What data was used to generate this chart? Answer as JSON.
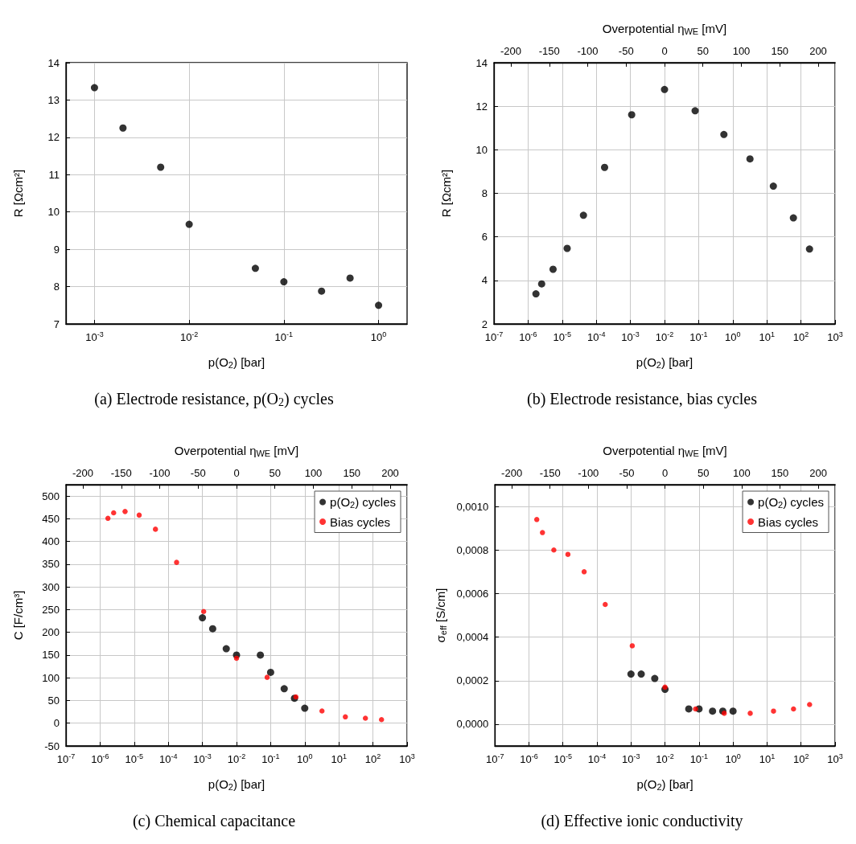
{
  "chart_data": [
    {
      "type": "scatter",
      "title": "(a) Electrode resistance, p(O$_{2}$) cycles",
      "xlabel": "p(O$_{2}$) [bar]",
      "ylabel": "R [Ωcm²]",
      "log": "x",
      "grid": true,
      "marker": "circle",
      "legend": false,
      "xlim": [
        0.0005,
        2
      ],
      "xticks": [
        {
          "value": 0.001,
          "label": "10$^{-3}$"
        },
        {
          "value": 0.01,
          "label": "10$^{-2}$"
        },
        {
          "value": 0.1,
          "label": "10$^{-1}$"
        },
        {
          "value": 1,
          "label": "10$^{0}$"
        }
      ],
      "ylim": [
        7,
        14
      ],
      "yticks": [
        7,
        8,
        9,
        10,
        11,
        12,
        13,
        14
      ],
      "series": [
        {
          "color": "#000000",
          "x": [
            0.001,
            0.002,
            0.005,
            0.01,
            0.05,
            0.1,
            0.25,
            0.5,
            1
          ],
          "values": [
            13.33,
            12.25,
            11.2,
            9.67,
            8.49,
            8.13,
            7.88,
            8.23,
            7.5
          ]
        }
      ]
    },
    {
      "type": "scatter",
      "title": "(b) Electrode resistance, bias cycles",
      "xlabel": "p(O$_{2}$) [bar]",
      "ylabel": "R [Ωcm²]",
      "x2label": "Overpotential η$_{WE}$ [mV]",
      "log": "x",
      "grid": true,
      "marker": "circle",
      "legend": false,
      "xlim": [
        1e-07,
        1000
      ],
      "xticks": [
        {
          "value": 1e-07,
          "label": "10$^{-7}$"
        },
        {
          "value": 1e-06,
          "label": "10$^{-6}$"
        },
        {
          "value": 1e-05,
          "label": "10$^{-5}$"
        },
        {
          "value": 0.0001,
          "label": "10$^{-4}$"
        },
        {
          "value": 0.001,
          "label": "10$^{-3}$"
        },
        {
          "value": 0.01,
          "label": "10$^{-2}$"
        },
        {
          "value": 0.1,
          "label": "10$^{-1}$"
        },
        {
          "value": 1,
          "label": "10$^{0}$"
        },
        {
          "value": 10,
          "label": "10$^{1}$"
        },
        {
          "value": 100,
          "label": "10$^{2}$"
        },
        {
          "value": 1000,
          "label": "10$^{3}$"
        }
      ],
      "x2lim": [
        -222,
        222
      ],
      "x2ticks": [
        -200,
        -150,
        -100,
        -50,
        0,
        50,
        100,
        150,
        200
      ],
      "ylim": [
        2,
        14
      ],
      "yticks": [
        2,
        4,
        6,
        8,
        10,
        12,
        14
      ],
      "series": [
        {
          "color": "#000000",
          "x": [
            1.7e-06,
            2.5e-06,
            5.4e-06,
            1.4e-05,
            4.2e-05,
            0.000175,
            0.00109,
            0.01,
            0.079,
            0.55,
            3.2,
            15.5,
            60,
            178
          ],
          "values": [
            3.38,
            3.84,
            4.51,
            5.47,
            6.99,
            9.19,
            11.61,
            12.77,
            11.79,
            10.7,
            9.58,
            8.33,
            6.87,
            5.44
          ]
        }
      ]
    },
    {
      "type": "scatter",
      "title": "(c) Chemical capacitance",
      "xlabel": "p(O$_{2}$) [bar]",
      "ylabel": "C [F/cm³]",
      "x2label": "Overpotential η$_{WE}$ [mV]",
      "log": "x",
      "grid": true,
      "marker": "circle",
      "legend": "top right",
      "xlim": [
        1e-07,
        1000
      ],
      "xticks": [
        {
          "value": 1e-07,
          "label": "10$^{-7}$"
        },
        {
          "value": 1e-06,
          "label": "10$^{-6}$"
        },
        {
          "value": 1e-05,
          "label": "10$^{-5}$"
        },
        {
          "value": 0.0001,
          "label": "10$^{-4}$"
        },
        {
          "value": 0.001,
          "label": "10$^{-3}$"
        },
        {
          "value": 0.01,
          "label": "10$^{-2}$"
        },
        {
          "value": 0.1,
          "label": "10$^{-1}$"
        },
        {
          "value": 1,
          "label": "10$^{0}$"
        },
        {
          "value": 10,
          "label": "10$^{1}$"
        },
        {
          "value": 100,
          "label": "10$^{2}$"
        },
        {
          "value": 1000,
          "label": "10$^{3}$"
        }
      ],
      "x2lim": [
        -222,
        222
      ],
      "x2ticks": [
        -200,
        -150,
        -100,
        -50,
        0,
        50,
        100,
        150,
        200
      ],
      "ylim": [
        -50,
        525
      ],
      "yticks": [
        -50,
        0,
        50,
        100,
        150,
        200,
        250,
        300,
        350,
        400,
        450,
        500
      ],
      "series": [
        {
          "name": "p(O$_{2}$) cycles",
          "color": "#000000",
          "x": [
            0.001,
            0.002,
            0.005,
            0.01,
            0.05,
            0.1,
            0.25,
            0.5,
            1
          ],
          "values": [
            232,
            208,
            164,
            150,
            150,
            112,
            76,
            55,
            33
          ]
        },
        {
          "name": "Bias cycles",
          "color": "#ff0000",
          "x": [
            1.7e-06,
            2.5e-06,
            5.4e-06,
            1.4e-05,
            4.2e-05,
            0.000175,
            0.00109,
            0.01,
            0.079,
            0.55,
            3.2,
            15.5,
            60,
            178
          ],
          "values": [
            451,
            463,
            466,
            458,
            427,
            354,
            246,
            143,
            101,
            58,
            27,
            14,
            11,
            8
          ]
        }
      ]
    },
    {
      "type": "scatter",
      "title": "(d) Effective ionic conductivity",
      "xlabel": "p(O$_{2}$) [bar]",
      "ylabel": "σ$_{eff}$ [S/cm]",
      "x2label": "Overpotential η$_{WE}$ [mV]",
      "log": "x",
      "grid": true,
      "marker": "circle",
      "legend": "top right",
      "xlim": [
        1e-07,
        1000
      ],
      "xticks": [
        {
          "value": 1e-07,
          "label": "10$^{-7}$"
        },
        {
          "value": 1e-06,
          "label": "10$^{-6}$"
        },
        {
          "value": 1e-05,
          "label": "10$^{-5}$"
        },
        {
          "value": 0.0001,
          "label": "10$^{-4}$"
        },
        {
          "value": 0.001,
          "label": "10$^{-3}$"
        },
        {
          "value": 0.01,
          "label": "10$^{-2}$"
        },
        {
          "value": 0.1,
          "label": "10$^{-1}$"
        },
        {
          "value": 1,
          "label": "10$^{0}$"
        },
        {
          "value": 10,
          "label": "10$^{1}$"
        },
        {
          "value": 100,
          "label": "10$^{2}$"
        },
        {
          "value": 1000,
          "label": "10$^{3}$"
        }
      ],
      "x2lim": [
        -222,
        222
      ],
      "x2ticks": [
        -200,
        -150,
        -100,
        -50,
        0,
        50,
        100,
        150,
        200
      ],
      "ylim": [
        -0.0001,
        0.0011
      ],
      "yticks": [
        {
          "value": 0,
          "label": "0,0000"
        },
        {
          "value": 0.0002,
          "label": "0,0002"
        },
        {
          "value": 0.0004,
          "label": "0,0004"
        },
        {
          "value": 0.0006,
          "label": "0,0006"
        },
        {
          "value": 0.0008,
          "label": "0,0008"
        },
        {
          "value": 0.001,
          "label": "0,0010"
        }
      ],
      "series": [
        {
          "name": "p(O$_{2}$) cycles",
          "color": "#000000",
          "x": [
            0.001,
            0.002,
            0.005,
            0.01,
            0.05,
            0.1,
            0.25,
            0.5,
            1
          ],
          "values": [
            0.00023,
            0.00023,
            0.00021,
            0.00016,
            7e-05,
            7e-05,
            6e-05,
            6e-05,
            6e-05
          ]
        },
        {
          "name": "Bias cycles",
          "color": "#ff0000",
          "x": [
            1.7e-06,
            2.5e-06,
            5.4e-06,
            1.4e-05,
            4.2e-05,
            0.000175,
            0.00109,
            0.01,
            0.079,
            0.55,
            3.2,
            15.5,
            60,
            178
          ],
          "values": [
            0.00094,
            0.00088,
            0.0008,
            0.00078,
            0.0007,
            0.00055,
            0.00036,
            0.00017,
            7e-05,
            5e-05,
            5e-05,
            6e-05,
            7e-05,
            9e-05
          ]
        }
      ]
    }
  ]
}
